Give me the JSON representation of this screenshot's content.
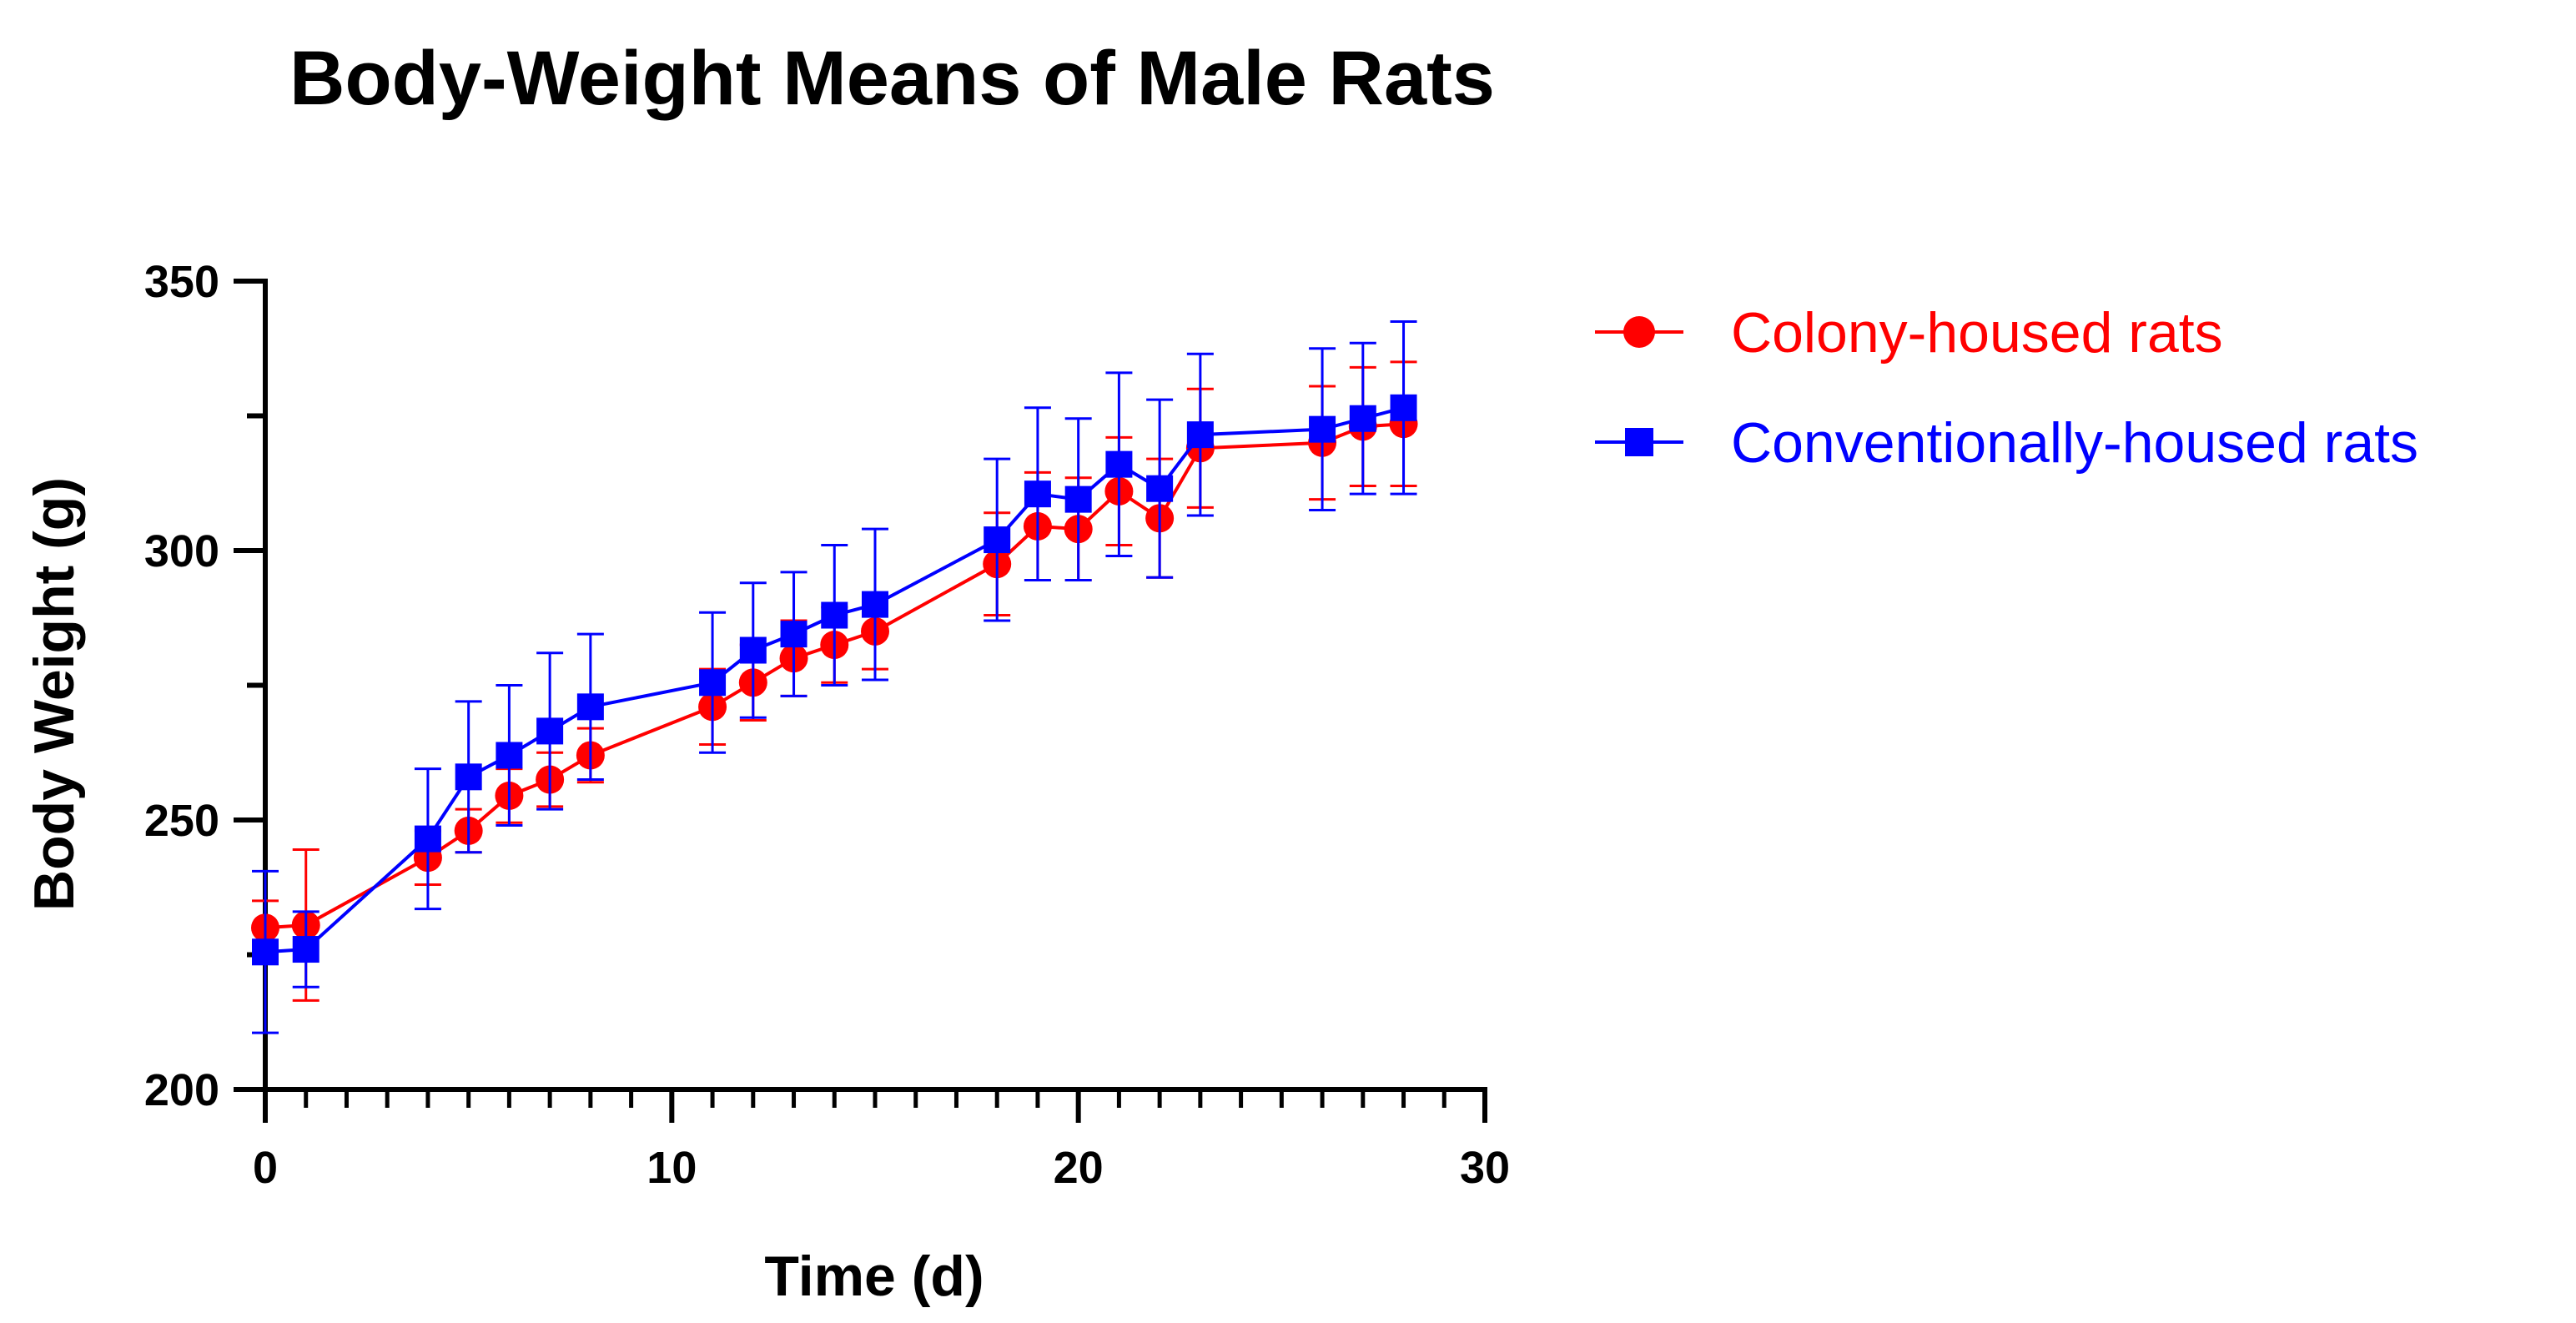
{
  "chart_data": {
    "type": "line",
    "title": "Body-Weight Means of Male Rats",
    "xlabel": "Time (d)",
    "ylabel": "Body Weight (g)",
    "xlim": [
      0,
      30
    ],
    "ylim": [
      200,
      350
    ],
    "x_ticks": [
      0,
      10,
      20,
      30
    ],
    "x_tick_labels": [
      "0",
      "10",
      "20",
      "30"
    ],
    "x_minor_step": 1,
    "y_ticks": [
      200,
      250,
      300,
      350
    ],
    "y_tick_labels": [
      "200",
      "250",
      "300",
      "350"
    ],
    "y_minor_ticks": [
      225,
      275,
      325
    ],
    "grid": false,
    "legend_position": "right",
    "series": [
      {
        "name": "Colony-housed rats",
        "color": "#ff0000",
        "marker": "circle",
        "x": [
          0,
          1,
          4,
          5,
          6,
          7,
          8,
          11,
          12,
          13,
          14,
          15,
          18,
          19,
          20,
          21,
          22,
          23,
          26,
          27,
          28
        ],
        "values": [
          230,
          230.5,
          243,
          248,
          254.5,
          257.5,
          262,
          271,
          275.5,
          280,
          282.5,
          285,
          297.5,
          304.5,
          304,
          311,
          306,
          319,
          320,
          323,
          323.5
        ],
        "error": [
          5,
          14,
          5,
          4,
          5,
          5,
          5,
          7,
          7,
          7,
          7,
          7,
          9.5,
          10,
          9.5,
          10,
          11,
          11,
          10.5,
          11,
          11.5
        ]
      },
      {
        "name": "Conventionally-housed rats",
        "color": "#0000ff",
        "marker": "square",
        "x": [
          0,
          1,
          4,
          5,
          6,
          7,
          8,
          11,
          12,
          13,
          14,
          15,
          18,
          19,
          20,
          21,
          22,
          23,
          26,
          27,
          28
        ],
        "values": [
          225.5,
          226,
          246.5,
          258,
          262,
          266.5,
          271,
          275.5,
          281.5,
          284.5,
          288,
          290,
          302,
          310.5,
          309.5,
          316,
          311.5,
          321.5,
          322.5,
          324.5,
          326.5
        ],
        "error": [
          15,
          7,
          13,
          14,
          13,
          14.5,
          13.5,
          13,
          12.5,
          11.5,
          13,
          14,
          15,
          16,
          15,
          17,
          16.5,
          15,
          15,
          14,
          16
        ]
      }
    ]
  }
}
